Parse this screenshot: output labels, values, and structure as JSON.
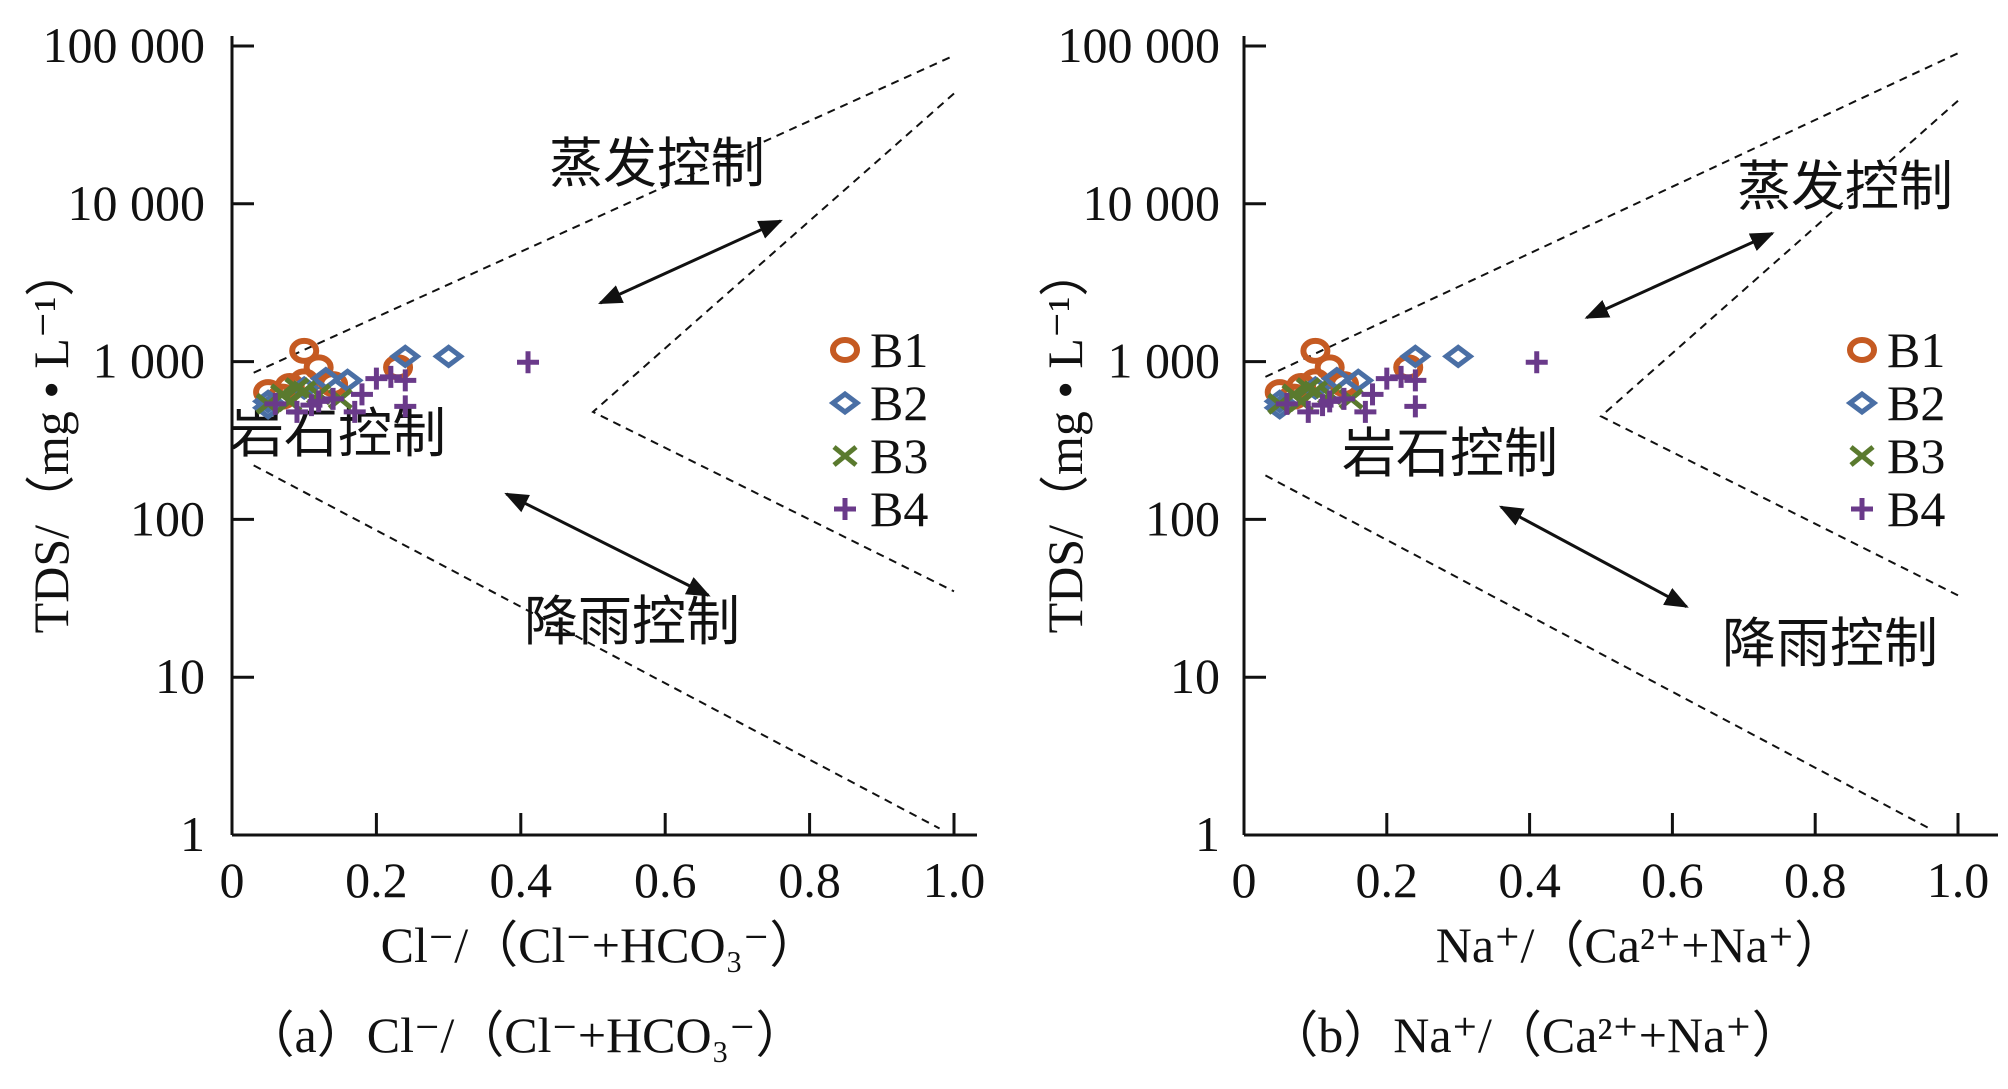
{
  "chart_data": [
    {
      "type": "scatter",
      "caption": "（a）Cl⁻/（Cl⁻+HCO₃⁻）",
      "xlabel": "Cl⁻/（Cl⁻+HCO₃⁻）",
      "ylabel": "TDS/（mg • L⁻¹）",
      "xscale": "linear",
      "yscale": "log",
      "xlim": [
        0,
        1.03
      ],
      "ylim": [
        1,
        100000
      ],
      "xticks": [
        "0",
        "0.2",
        "0.4",
        "0.6",
        "0.8",
        "1.0"
      ],
      "yticks": [
        "1",
        "10",
        "100",
        "1 000",
        "10 000",
        "100 000"
      ],
      "grid": false,
      "legend": "right",
      "annotations": [
        "蒸发控制",
        "岩石控制",
        "降雨控制"
      ],
      "boundaries": [
        {
          "x": [
            0.03,
            1.0
          ],
          "y": [
            850,
            87000
          ]
        },
        {
          "x": [
            1.0,
            0.5,
            1.0
          ],
          "y": [
            50000,
            480,
            35
          ]
        },
        {
          "x": [
            0.03,
            0.98
          ],
          "y": [
            220,
            1.1
          ]
        }
      ],
      "arrows": [
        {
          "x": [
            0.51,
            0.76
          ],
          "y": [
            2350,
            7800
          ]
        },
        {
          "x": [
            0.38,
            0.66
          ],
          "y": [
            145,
            33
          ]
        }
      ],
      "series": [
        {
          "name": "B1",
          "marker": "circle",
          "color": "#C55A22",
          "x": [
            0.1,
            0.12,
            0.05,
            0.08,
            0.1,
            0.14,
            0.23,
            0.07
          ],
          "y": [
            1170,
            920,
            640,
            700,
            750,
            720,
            920,
            600
          ]
        },
        {
          "name": "B2",
          "marker": "diamond",
          "color": "#4A6FA5",
          "x": [
            0.24,
            0.3,
            0.13,
            0.16,
            0.05,
            0.05,
            0.1
          ],
          "y": [
            1080,
            1080,
            780,
            760,
            560,
            510,
            680
          ]
        },
        {
          "name": "B3",
          "marker": "x",
          "color": "#5A7A2E",
          "x": [
            0.05,
            0.07,
            0.09,
            0.08,
            0.12,
            0.15,
            0.1
          ],
          "y": [
            540,
            620,
            680,
            560,
            620,
            580,
            650
          ]
        },
        {
          "name": "B4",
          "marker": "plus",
          "color": "#6A3A8A",
          "x": [
            0.41,
            0.22,
            0.2,
            0.24,
            0.24,
            0.18,
            0.17,
            0.06,
            0.09,
            0.12,
            0.14,
            0.11
          ],
          "y": [
            990,
            800,
            780,
            760,
            520,
            620,
            480,
            540,
            480,
            560,
            580,
            530
          ]
        }
      ]
    },
    {
      "type": "scatter",
      "caption": "（b）Na⁺/（Ca²⁺+Na⁺）",
      "xlabel": "Na⁺/（Ca²⁺+Na⁺）",
      "ylabel": "TDS/（mg • L⁻¹）",
      "xscale": "linear",
      "yscale": "log",
      "xlim": [
        0,
        1.05
      ],
      "ylim": [
        1,
        100000
      ],
      "xticks": [
        "0",
        "0.2",
        "0.4",
        "0.6",
        "0.8",
        "1.0"
      ],
      "yticks": [
        "1",
        "10",
        "100",
        "1 000",
        "10 000",
        "100 000"
      ],
      "grid": false,
      "legend": "right",
      "annotations": [
        "蒸发控制",
        "岩石控制",
        "降雨控制"
      ],
      "boundaries": [
        {
          "x": [
            0.03,
            1.0
          ],
          "y": [
            800,
            90000
          ]
        },
        {
          "x": [
            1.0,
            0.5,
            1.0
          ],
          "y": [
            45000,
            450,
            33
          ]
        },
        {
          "x": [
            0.03,
            0.96
          ],
          "y": [
            190,
            1.1
          ]
        }
      ],
      "arrows": [
        {
          "x": [
            0.48,
            0.74
          ],
          "y": [
            1900,
            6500
          ]
        },
        {
          "x": [
            0.36,
            0.62
          ],
          "y": [
            120,
            28
          ]
        }
      ],
      "series": [
        {
          "name": "B1",
          "marker": "circle",
          "color": "#C55A22",
          "x": [
            0.1,
            0.12,
            0.05,
            0.08,
            0.1,
            0.14,
            0.23,
            0.07
          ],
          "y": [
            1170,
            920,
            640,
            700,
            750,
            720,
            920,
            600
          ]
        },
        {
          "name": "B2",
          "marker": "diamond",
          "color": "#4A6FA5",
          "x": [
            0.24,
            0.3,
            0.13,
            0.16,
            0.05,
            0.05,
            0.1
          ],
          "y": [
            1080,
            1080,
            780,
            760,
            560,
            510,
            680
          ]
        },
        {
          "name": "B3",
          "marker": "x",
          "color": "#5A7A2E",
          "x": [
            0.05,
            0.07,
            0.09,
            0.08,
            0.12,
            0.15,
            0.1
          ],
          "y": [
            540,
            620,
            680,
            560,
            620,
            580,
            650
          ]
        },
        {
          "name": "B4",
          "marker": "plus",
          "color": "#6A3A8A",
          "x": [
            0.41,
            0.22,
            0.2,
            0.24,
            0.24,
            0.18,
            0.17,
            0.06,
            0.09,
            0.12,
            0.14,
            0.11
          ],
          "y": [
            990,
            800,
            780,
            760,
            520,
            620,
            480,
            540,
            480,
            560,
            580,
            530
          ]
        }
      ]
    }
  ]
}
